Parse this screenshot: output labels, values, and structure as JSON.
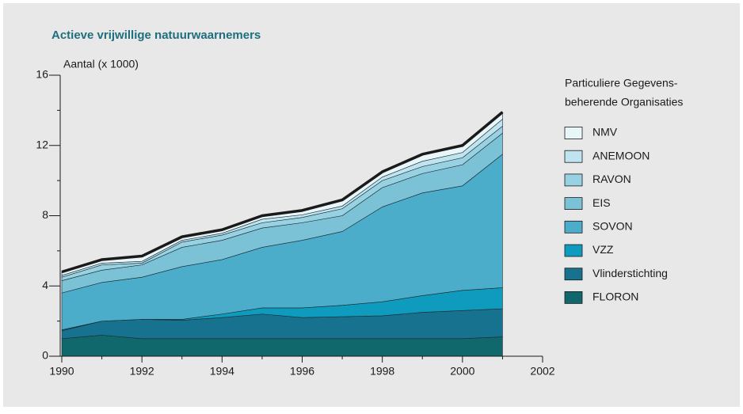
{
  "chart_data": {
    "type": "stacked_area",
    "title": "Actieve vrijwillige natuurwaarnemers",
    "y_label": "Aantal (x 1000)",
    "legend_title": [
      "Particuliere Gegevens-",
      "beherende Organisaties"
    ],
    "x": [
      1990,
      1991,
      1992,
      1993,
      1994,
      1995,
      1996,
      1997,
      1998,
      1999,
      2000,
      2001
    ],
    "xlim": [
      1990,
      2002
    ],
    "xticks": [
      1990,
      1992,
      1994,
      1996,
      1998,
      2000,
      2002
    ],
    "xticks_minor": [
      1991,
      1993,
      1995,
      1997,
      1999,
      2001
    ],
    "ylim": [
      0,
      16
    ],
    "yticks": [
      0,
      4,
      8,
      12,
      16
    ],
    "yticks_minor": [
      2,
      6,
      10,
      14
    ],
    "series": [
      {
        "name": "FLORON",
        "color": "#11686c",
        "values": [
          1.0,
          1.2,
          1.0,
          1.0,
          1.0,
          1.0,
          1.0,
          1.0,
          1.0,
          1.0,
          1.0,
          1.1
        ]
      },
      {
        "name": "Vlinderstichting",
        "color": "#16728f",
        "values": [
          0.45,
          0.8,
          1.1,
          1.05,
          1.2,
          1.4,
          1.2,
          1.25,
          1.3,
          1.5,
          1.6,
          1.6
        ]
      },
      {
        "name": "VZZ",
        "color": "#0e9bbd",
        "values": [
          0.05,
          0,
          0,
          0.05,
          0.2,
          0.35,
          0.55,
          0.65,
          0.8,
          0.95,
          1.15,
          1.2
        ]
      },
      {
        "name": "SOVON",
        "color": "#4badca",
        "values": [
          2.1,
          2.2,
          2.4,
          3.0,
          3.1,
          3.45,
          3.85,
          4.2,
          5.4,
          5.85,
          5.95,
          7.6
        ]
      },
      {
        "name": "EIS",
        "color": "#7cc2d7",
        "values": [
          0.7,
          0.7,
          0.7,
          1.1,
          1.1,
          1.1,
          1.0,
          0.9,
          1.1,
          1.1,
          1.2,
          1.2
        ]
      },
      {
        "name": "RAVON",
        "color": "#97d1e2",
        "values": [
          0.2,
          0.3,
          0.1,
          0.3,
          0.3,
          0.3,
          0.3,
          0.4,
          0.4,
          0.4,
          0.4,
          0.4
        ]
      },
      {
        "name": "ANEMOON",
        "color": "#c0e4ef",
        "values": [
          0.1,
          0.1,
          0.1,
          0.1,
          0.1,
          0.2,
          0.15,
          0.15,
          0.2,
          0.3,
          0.3,
          0.4
        ]
      },
      {
        "name": "NMV",
        "color": "#e8f6fa",
        "values": [
          0.2,
          0.2,
          0.3,
          0.2,
          0.2,
          0.2,
          0.25,
          0.35,
          0.3,
          0.4,
          0.4,
          0.4
        ]
      }
    ]
  }
}
